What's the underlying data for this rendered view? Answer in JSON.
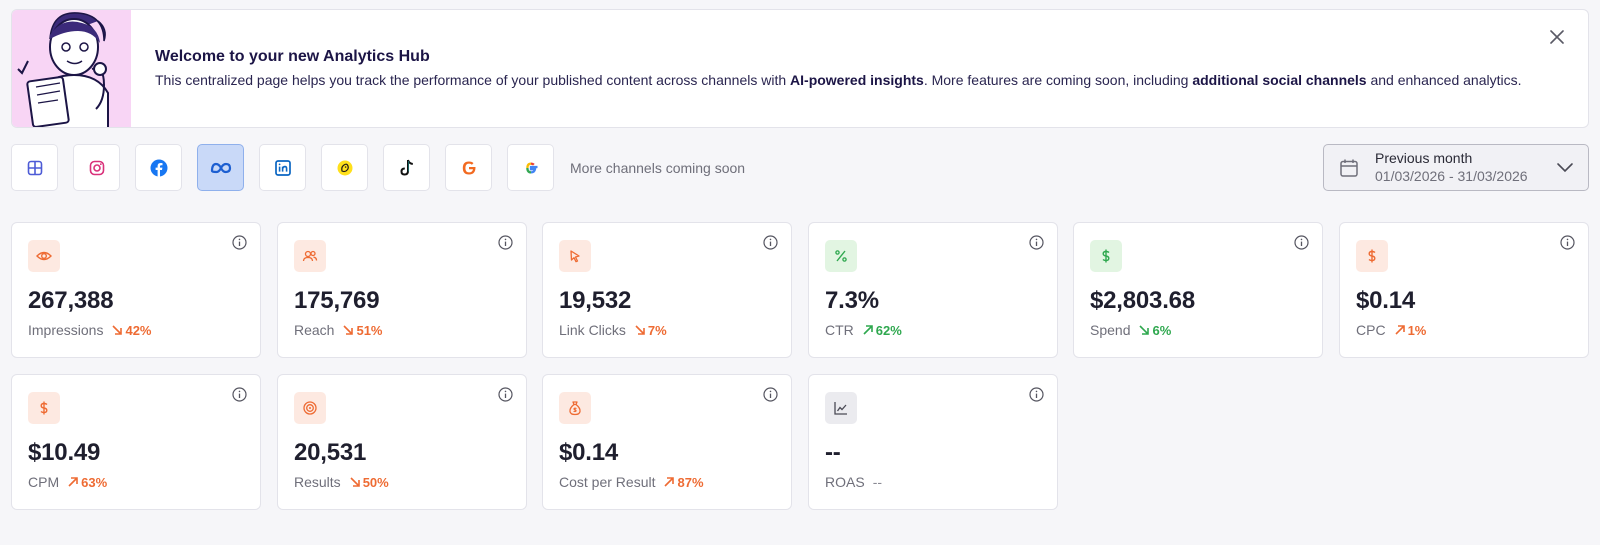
{
  "banner": {
    "title": "Welcome to your new Analytics Hub",
    "body_pre": "This centralized page helps you track the performance of your published content across channels with ",
    "body_bold1": "AI-powered insights",
    "body_mid": ". More features are coming soon, including ",
    "body_bold2": "additional social channels",
    "body_post": " and enhanced analytics."
  },
  "channels": {
    "items": [
      {
        "name": "all-channels-icon",
        "active": false
      },
      {
        "name": "instagram-icon",
        "active": false
      },
      {
        "name": "facebook-icon",
        "active": false
      },
      {
        "name": "meta-icon",
        "active": true
      },
      {
        "name": "linkedin-icon",
        "active": false
      },
      {
        "name": "mailchimp-icon",
        "active": false
      },
      {
        "name": "tiktok-icon",
        "active": false
      },
      {
        "name": "google-ads-icon",
        "active": false
      },
      {
        "name": "google-icon",
        "active": false
      }
    ],
    "note": "More channels coming soon"
  },
  "datepicker": {
    "label": "Previous month",
    "range": "01/03/2026 - 31/03/2026"
  },
  "metrics": [
    {
      "value": "267,388",
      "label": "Impressions",
      "change": "42%",
      "direction": "down",
      "tone": "orange",
      "icon": "eye-icon",
      "icon_tone": "orange"
    },
    {
      "value": "175,769",
      "label": "Reach",
      "change": "51%",
      "direction": "down",
      "tone": "orange",
      "icon": "users-icon",
      "icon_tone": "orange"
    },
    {
      "value": "19,532",
      "label": "Link Clicks",
      "change": "7%",
      "direction": "down",
      "tone": "orange",
      "icon": "cursor-icon",
      "icon_tone": "orange"
    },
    {
      "value": "7.3%",
      "label": "CTR",
      "change": "62%",
      "direction": "up",
      "tone": "green",
      "icon": "percent-icon",
      "icon_tone": "green"
    },
    {
      "value": "$2,803.68",
      "label": "Spend",
      "change": "6%",
      "direction": "down",
      "tone": "green",
      "icon": "dollar-icon",
      "icon_tone": "green"
    },
    {
      "value": "$0.14",
      "label": "CPC",
      "change": "1%",
      "direction": "up",
      "tone": "orange",
      "icon": "dollar-icon",
      "icon_tone": "orange"
    },
    {
      "value": "$10.49",
      "label": "CPM",
      "change": "63%",
      "direction": "up",
      "tone": "orange",
      "icon": "dollar-icon",
      "icon_tone": "orange"
    },
    {
      "value": "20,531",
      "label": "Results",
      "change": "50%",
      "direction": "down",
      "tone": "orange",
      "icon": "target-icon",
      "icon_tone": "orange"
    },
    {
      "value": "$0.14",
      "label": "Cost per Result",
      "change": "87%",
      "direction": "up",
      "tone": "orange",
      "icon": "money-bag-icon",
      "icon_tone": "orange"
    },
    {
      "value": "--",
      "label": "ROAS",
      "change": "--",
      "direction": "none",
      "tone": "muted",
      "icon": "trend-chart-icon",
      "icon_tone": "gray"
    }
  ],
  "colors": {
    "accent_orange": "#ee6b33",
    "accent_green": "#2fa84f",
    "active_channel_bg": "#c9d9f8",
    "banner_illustration_bg": "#f8d5f5"
  }
}
